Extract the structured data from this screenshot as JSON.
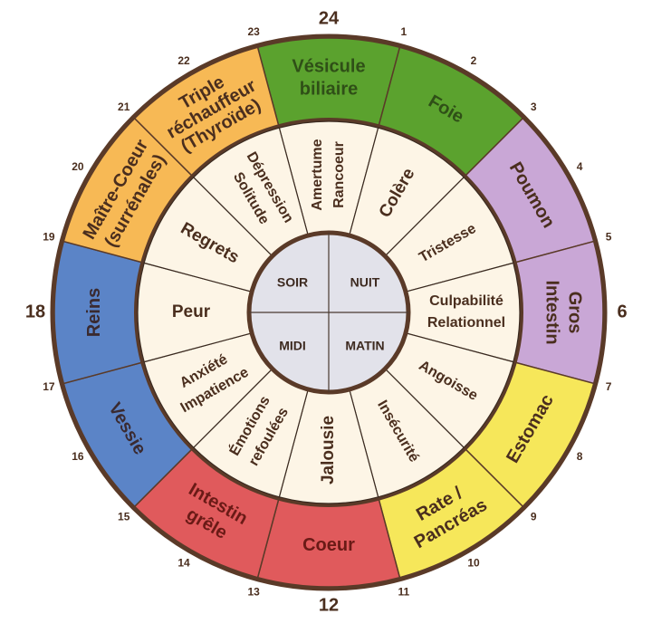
{
  "center": {
    "quadrants": [
      "SOIR",
      "NUIT",
      "MIDI",
      "MATIN"
    ],
    "color": "#e2e2ea"
  },
  "organs": [
    {
      "lines": [
        "Vésicule",
        "biliaire"
      ],
      "color": "#5ba22e",
      "text": "#2f4f17"
    },
    {
      "lines": [
        "Foie"
      ],
      "color": "#5ba22e",
      "text": "#2f4f17"
    },
    {
      "lines": [
        "Poumon"
      ],
      "color": "#c9a7d6",
      "text": "#4a2e1e"
    },
    {
      "lines": [
        "Gros",
        "Intestin"
      ],
      "color": "#c9a7d6",
      "text": "#4a2e1e"
    },
    {
      "lines": [
        "Estomac"
      ],
      "color": "#f6e75a",
      "text": "#4a2e1e"
    },
    {
      "lines": [
        "Rate /",
        "Pancréas"
      ],
      "color": "#f6e75a",
      "text": "#4a2e1e"
    },
    {
      "lines": [
        "Coeur"
      ],
      "color": "#e05a5c",
      "text": "#6a1a16"
    },
    {
      "lines": [
        "Intestin",
        "grêle"
      ],
      "color": "#e05a5c",
      "text": "#6a1a16"
    },
    {
      "lines": [
        "Vessie"
      ],
      "color": "#5b84c7",
      "text": "#3a2a30"
    },
    {
      "lines": [
        "Reins"
      ],
      "color": "#5b84c7",
      "text": "#3a2a30"
    },
    {
      "lines": [
        "Maître-Coeur",
        "(surrénales)"
      ],
      "color": "#f7b955",
      "text": "#4a2e1e"
    },
    {
      "lines": [
        "Triple",
        "réchauffeur",
        "(Thyroïde)"
      ],
      "color": "#f7b955",
      "text": "#4a2e1e"
    }
  ],
  "emotions": [
    {
      "lines": [
        "Amertume",
        "Rancoeur"
      ]
    },
    {
      "lines": [
        "Colère"
      ],
      "big": true
    },
    {
      "lines": [
        "Tristesse"
      ]
    },
    {
      "lines": [
        "Culpabilité",
        "Relationnel"
      ]
    },
    {
      "lines": [
        "Angoisse"
      ]
    },
    {
      "lines": [
        "Insécurité"
      ]
    },
    {
      "lines": [
        "Jalousie"
      ],
      "big": true
    },
    {
      "lines": [
        "Émotions",
        "refoulées"
      ]
    },
    {
      "lines": [
        "Anxiété",
        "Impatience"
      ]
    },
    {
      "lines": [
        "Peur"
      ],
      "big": true
    },
    {
      "lines": [
        "Regrets"
      ],
      "big": true
    },
    {
      "lines": [
        "Dépression",
        "Solitude"
      ]
    }
  ],
  "hours": [
    "24",
    "1",
    "2",
    "3",
    "4",
    "5",
    "6",
    "7",
    "8",
    "9",
    "10",
    "11",
    "12",
    "13",
    "14",
    "15",
    "16",
    "17",
    "18",
    "19",
    "20",
    "21",
    "22",
    "23"
  ],
  "colors": {
    "ring_background": "#fdf5e6",
    "border": "#5a3a28"
  }
}
